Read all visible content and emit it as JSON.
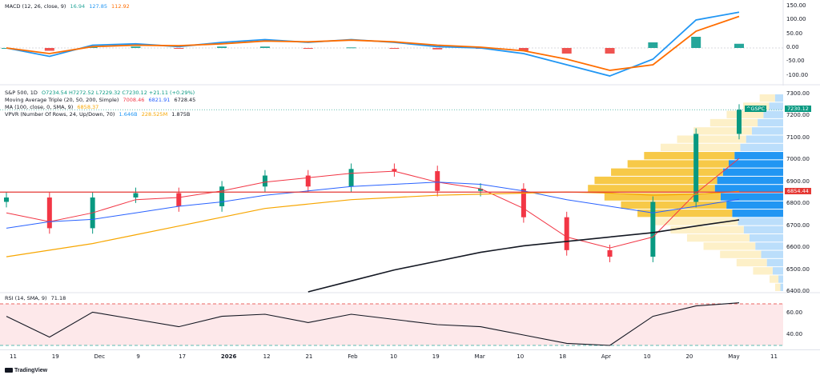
{
  "macd": {
    "label": "MACD (12, 26, close, 9)",
    "values": [
      "16.94",
      "127.85",
      "112.92"
    ],
    "colors": [
      "#26a69a",
      "#2196f3",
      "#ff6d00"
    ],
    "ticks": [
      "150.00",
      "100.00",
      "50.00",
      "0.00",
      "-50.00",
      "-100.00"
    ]
  },
  "price": {
    "title": "S&P 500, 1D",
    "ohlc": "O7234.54 H7272.52 L7229.32 C7230.12 +21.11 (+0.29%)",
    "mat_label": "Moving Average Triple (20, 50, 200, Simple)",
    "mat_values": [
      "7008.46",
      "6821.91",
      "6728.45"
    ],
    "mat_colors": [
      "#f23645",
      "#2962ff",
      "#131722"
    ],
    "ma_label": "MA (100, close, 0, SMA, 9)",
    "ma_value": "6858.37",
    "ma_color": "#f7a600",
    "vpvr_label": "VPVR (Number Of Rows, 24, Up/Down, 70)",
    "vpvr_values": [
      "1.646B",
      "228.525M",
      "1.875B"
    ],
    "symbol_tag": "^GSPC",
    "last_price": "7230.12",
    "hline_price": "6854.44",
    "ticks": [
      "7300.00",
      "7200.00",
      "7100.00",
      "7000.00",
      "6900.00",
      "6800.00",
      "6700.00",
      "6600.00",
      "6500.00",
      "6400.00"
    ]
  },
  "rsi": {
    "label": "RSI (14, SMA, 9)",
    "value": "71.18",
    "ticks": [
      "60.00",
      "40.00"
    ]
  },
  "xaxis": {
    "ticks": [
      "11",
      "19",
      "Dec",
      "9",
      "17",
      "2026",
      "12",
      "21",
      "Feb",
      "10",
      "19",
      "Mar",
      "10",
      "18",
      "Apr",
      "10",
      "20",
      "May",
      "11"
    ]
  },
  "branding": "TradingView",
  "chart_data": {
    "type": "candlestick",
    "title": "S&P 500, 1D",
    "x": [
      "Nov 11",
      "Nov 19",
      "Dec",
      "Dec 9",
      "Dec 17",
      "2026",
      "Jan 12",
      "Jan 21",
      "Feb",
      "Feb 10",
      "Feb 19",
      "Mar",
      "Mar 10",
      "Mar 18",
      "Apr",
      "Apr 10",
      "Apr 20",
      "May"
    ],
    "close": [
      6830,
      6690,
      6830,
      6850,
      6790,
      6880,
      6930,
      6880,
      6960,
      6950,
      6860,
      6870,
      6740,
      6590,
      6560,
      6810,
      7120,
      7230
    ],
    "ylim": [
      6400,
      7300
    ],
    "series": [
      {
        "name": "MA 20",
        "values": [
          6760,
          6720,
          6760,
          6820,
          6830,
          6860,
          6900,
          6920,
          6940,
          6950,
          6900,
          6870,
          6780,
          6650,
          6600,
          6650,
          6850,
          7008
        ]
      },
      {
        "name": "MA 50",
        "values": [
          6690,
          6720,
          6730,
          6760,
          6790,
          6810,
          6840,
          6860,
          6880,
          6890,
          6900,
          6890,
          6860,
          6820,
          6790,
          6760,
          6790,
          6822
        ]
      },
      {
        "name": "MA 100",
        "values": [
          6560,
          6590,
          6620,
          6660,
          6700,
          6740,
          6780,
          6800,
          6820,
          6830,
          6840,
          6845,
          6850,
          6855,
          6850,
          6840,
          6845,
          6858
        ]
      },
      {
        "name": "MA 200",
        "values": [
          null,
          null,
          null,
          null,
          null,
          null,
          null,
          6400,
          6450,
          6500,
          6540,
          6580,
          6610,
          6630,
          6650,
          6670,
          6700,
          6728
        ]
      }
    ],
    "rsi": [
      58,
      38,
      62,
      55,
      48,
      58,
      60,
      52,
      60,
      55,
      50,
      48,
      40,
      32,
      30,
      58,
      68,
      71
    ],
    "rsi_levels": [
      70,
      30
    ],
    "macd": [
      0,
      -30,
      10,
      15,
      5,
      20,
      30,
      20,
      30,
      20,
      5,
      0,
      -20,
      -60,
      -100,
      -40,
      100,
      128
    ],
    "macd_signal": [
      0,
      -20,
      5,
      10,
      8,
      15,
      25,
      22,
      28,
      22,
      10,
      3,
      -10,
      -40,
      -80,
      -60,
      60,
      113
    ]
  }
}
